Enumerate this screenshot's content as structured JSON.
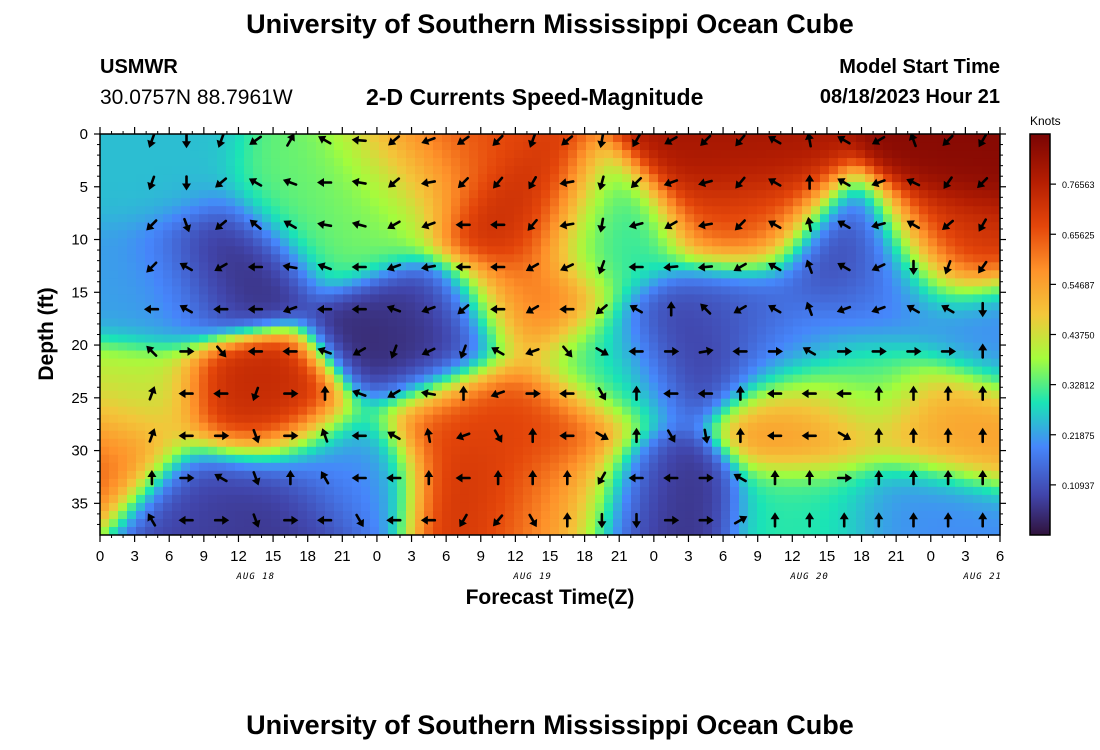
{
  "header": {
    "title": "University of Southern Mississippi Ocean Cube",
    "station": "USMWR",
    "coords": "30.0757N  88.7961W",
    "subtitle": "2-D Currents Speed-Magnitude",
    "model_start_label": "Model Start Time",
    "model_start_value": "08/18/2023 Hour 21"
  },
  "footer": {
    "title": "University of Southern Mississippi Ocean Cube"
  },
  "chart_data": {
    "type": "heatmap",
    "title": "2-D Currents Speed-Magnitude",
    "xlabel": "Forecast Time(Z)",
    "ylabel": "Depth (ft)",
    "x_tick_labels": [
      "0",
      "3",
      "6",
      "9",
      "12",
      "15",
      "18",
      "21",
      "0",
      "3",
      "6",
      "9",
      "12",
      "15",
      "18",
      "21",
      "0",
      "3",
      "6",
      "9",
      "12",
      "15",
      "18",
      "21",
      "0",
      "3",
      "6"
    ],
    "date_labels": [
      {
        "label": "AUG 18",
        "tick_index": 4.5
      },
      {
        "label": "AUG 19",
        "tick_index": 12.5
      },
      {
        "label": "AUG 20",
        "tick_index": 20.5
      },
      {
        "label": "AUG 21",
        "tick_index": 25.5
      }
    ],
    "y_ticks": [
      0,
      5,
      10,
      15,
      20,
      25,
      30,
      35
    ],
    "ylim": [
      38,
      0
    ],
    "xlim": [
      0,
      78
    ],
    "colorbar": {
      "label": "Knots",
      "tick_labels": [
        "0.76563",
        "0.65625",
        "0.54687",
        "0.43750",
        "0.32812",
        "0.21875",
        "0.10937"
      ],
      "tick_values": [
        0.76563,
        0.65625,
        0.54687,
        0.4375,
        0.32812,
        0.21875,
        0.10937
      ],
      "range": [
        0.0,
        0.875
      ]
    },
    "speed_centers": [
      {
        "t": 11,
        "d": 12,
        "v": 0.05
      },
      {
        "t": 27,
        "d": 20,
        "v": 0.03
      },
      {
        "t": 29,
        "d": 18,
        "v": 0.08
      },
      {
        "t": 14,
        "d": 26,
        "v": 0.74
      },
      {
        "t": 9,
        "d": 35,
        "v": 0.08
      },
      {
        "t": 15,
        "d": 35,
        "v": 0.06
      },
      {
        "t": 4,
        "d": 14,
        "v": 0.22
      },
      {
        "t": 0,
        "d": 30,
        "v": 0.66
      },
      {
        "t": 2,
        "d": 26,
        "v": 0.4
      },
      {
        "t": 18,
        "d": 6,
        "v": 0.34
      },
      {
        "t": 30,
        "d": 2,
        "v": 0.68
      },
      {
        "t": 36,
        "d": 8,
        "v": 0.74
      },
      {
        "t": 37,
        "d": 16,
        "v": 0.62
      },
      {
        "t": 38,
        "d": 28,
        "v": 0.68
      },
      {
        "t": 34,
        "d": 33,
        "v": 0.72
      },
      {
        "t": 32,
        "d": 27,
        "v": 0.68
      },
      {
        "t": 40,
        "d": 34,
        "v": 0.55
      },
      {
        "t": 44,
        "d": 22,
        "v": 0.3
      },
      {
        "t": 48,
        "d": 35,
        "v": 0.06
      },
      {
        "t": 51,
        "d": 20,
        "v": 0.06
      },
      {
        "t": 55,
        "d": 17,
        "v": 0.12
      },
      {
        "t": 55,
        "d": 3,
        "v": 0.8
      },
      {
        "t": 56,
        "d": 8,
        "v": 0.65
      },
      {
        "t": 62,
        "d": 27,
        "v": 0.58
      },
      {
        "t": 65,
        "d": 12,
        "v": 0.06
      },
      {
        "t": 68,
        "d": 15,
        "v": 0.2
      },
      {
        "t": 66,
        "d": 24,
        "v": 0.3
      },
      {
        "t": 73,
        "d": 27,
        "v": 0.55
      },
      {
        "t": 76,
        "d": 2,
        "v": 0.85
      },
      {
        "t": 74,
        "d": 10,
        "v": 0.72
      },
      {
        "t": 77,
        "d": 19,
        "v": 0.2
      },
      {
        "t": 70,
        "d": 36,
        "v": 0.2
      },
      {
        "t": 62,
        "d": 36,
        "v": 0.3
      },
      {
        "t": 44,
        "d": 10,
        "v": 0.3
      },
      {
        "t": 22,
        "d": 8,
        "v": 0.35
      },
      {
        "t": 26,
        "d": 4,
        "v": 0.4
      },
      {
        "t": 60,
        "d": 20,
        "v": 0.2
      },
      {
        "t": 21,
        "d": 32,
        "v": 0.2
      },
      {
        "t": 5,
        "d": 4,
        "v": 0.25
      }
    ],
    "arrow_directions_deg": [
      [
        200,
        180,
        200,
        235,
        30,
        300,
        275,
        230,
        250,
        235,
        225,
        200,
        230,
        190,
        210,
        240,
        225,
        220,
        300,
        350,
        300,
        240,
        340,
        225,
        210,
        235
      ],
      [
        200,
        180,
        230,
        300,
        290,
        270,
        280,
        230,
        260,
        225,
        220,
        210,
        260,
        195,
        225,
        250,
        255,
        220,
        300,
        0,
        300,
        250,
        295,
        215,
        225,
        60
      ],
      [
        225,
        160,
        230,
        310,
        300,
        280,
        285,
        240,
        250,
        270,
        270,
        220,
        260,
        190,
        255,
        240,
        260,
        225,
        300,
        350,
        300,
        255,
        300,
        230,
        210,
        60
      ],
      [
        225,
        300,
        240,
        270,
        280,
        290,
        270,
        250,
        260,
        270,
        270,
        240,
        245,
        200,
        270,
        265,
        265,
        240,
        300,
        340,
        300,
        245,
        180,
        200,
        215,
        60
      ],
      [
        270,
        300,
        270,
        270,
        250,
        270,
        270,
        290,
        250,
        230,
        270,
        240,
        270,
        230,
        300,
        0,
        315,
        240,
        300,
        340,
        250,
        250,
        300,
        300,
        180,
        130
      ],
      [
        315,
        90,
        140,
        270,
        270,
        290,
        240,
        200,
        245,
        200,
        300,
        250,
        140,
        120,
        270,
        90,
        80,
        270,
        90,
        300,
        90,
        90,
        90,
        90,
        0,
        0
      ],
      [
        20,
        270,
        270,
        200,
        90,
        0,
        290,
        240,
        280,
        0,
        250,
        90,
        270,
        150,
        0,
        270,
        270,
        0,
        270,
        270,
        270,
        0,
        0,
        0,
        0,
        0
      ],
      [
        20,
        270,
        90,
        160,
        90,
        340,
        270,
        300,
        350,
        250,
        150,
        0,
        270,
        120,
        0,
        150,
        170,
        0,
        270,
        270,
        120,
        0,
        0,
        0,
        0,
        0
      ],
      [
        0,
        90,
        300,
        160,
        0,
        330,
        270,
        270,
        0,
        270,
        0,
        0,
        0,
        210,
        270,
        270,
        90,
        300,
        0,
        0,
        90,
        0,
        0,
        0,
        0,
        0
      ],
      [
        330,
        270,
        90,
        160,
        90,
        270,
        150,
        270,
        270,
        210,
        220,
        150,
        0,
        180,
        180,
        90,
        90,
        60,
        0,
        0,
        0,
        0,
        0,
        0,
        0,
        0
      ]
    ]
  }
}
